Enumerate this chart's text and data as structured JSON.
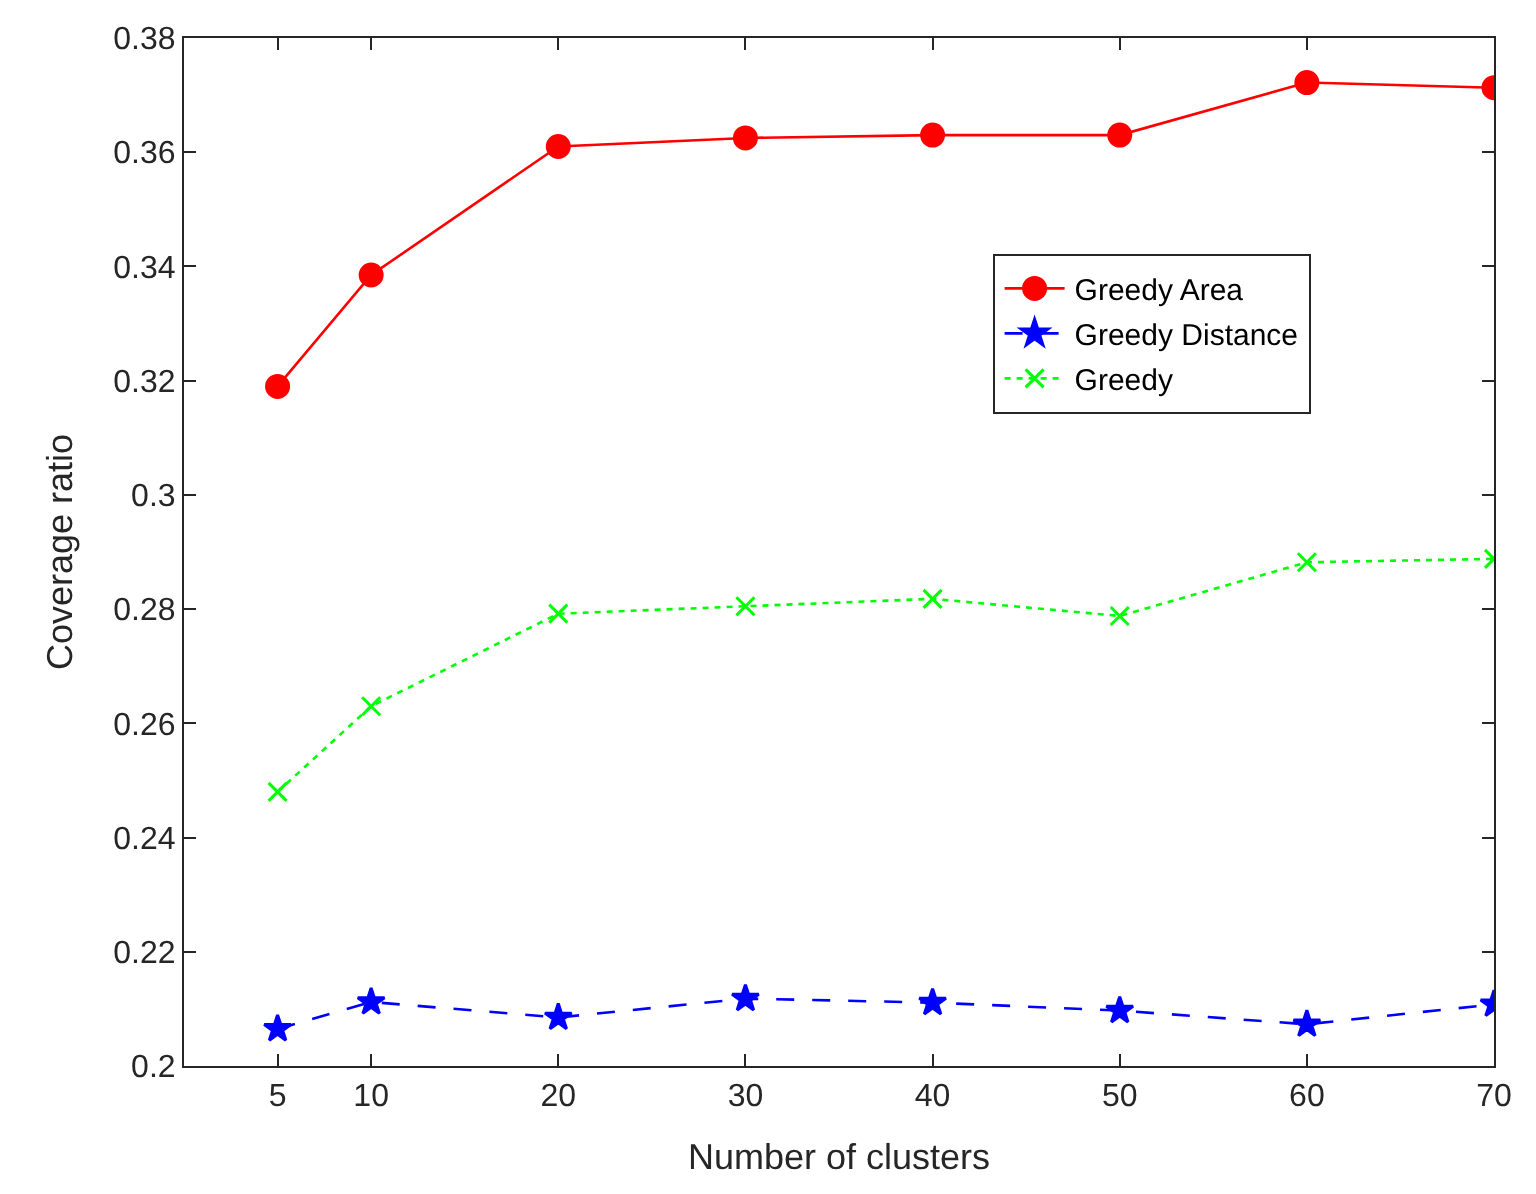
{
  "chart_data": {
    "type": "line",
    "xlabel": "Number of clusters",
    "ylabel": "Coverage ratio",
    "x": [
      5,
      10,
      20,
      30,
      40,
      50,
      60,
      70
    ],
    "xlim": [
      0,
      70
    ],
    "xticks": [
      5,
      10,
      20,
      30,
      40,
      50,
      60,
      70
    ],
    "ylim": [
      0.2,
      0.38
    ],
    "yticks": [
      0.2,
      0.22,
      0.24,
      0.26,
      0.28,
      0.3,
      0.32,
      0.34,
      0.36,
      0.38
    ],
    "legend": "top right",
    "series": [
      {
        "name": "Greedy Area",
        "color": "#ff0000",
        "marker": "circle",
        "line_style": "solid",
        "values": [
          0.319,
          0.3385,
          0.361,
          0.3625,
          0.363,
          0.363,
          0.3722,
          0.3713
        ]
      },
      {
        "name": "Greedy Distance",
        "color": "#0000ff",
        "marker": "star",
        "line_style": "dashed",
        "values": [
          0.2065,
          0.2112,
          0.2085,
          0.2118,
          0.2111,
          0.2097,
          0.2073,
          0.2108
        ]
      },
      {
        "name": "Greedy",
        "color": "#00ff00",
        "marker": "cross",
        "line_style": "dotted",
        "values": [
          0.248,
          0.263,
          0.2792,
          0.2805,
          0.2818,
          0.2788,
          0.2882,
          0.2888
        ]
      }
    ]
  }
}
